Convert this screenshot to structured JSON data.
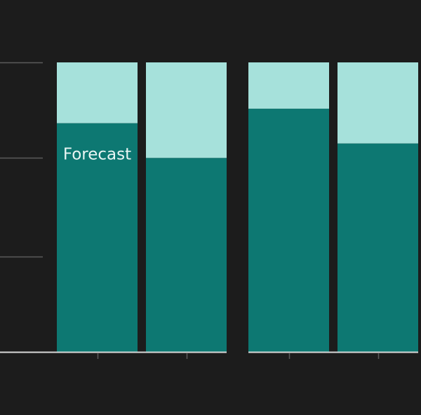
{
  "colors": {
    "background": "#1c1c1c",
    "series_primary": "#0d7872",
    "series_secondary": "#a6e1db",
    "grid": "#5a5a5a",
    "axis": "#d9d9d9",
    "annotation_text": "#e8f5f3"
  },
  "chart_data": {
    "type": "bar",
    "stacked": true,
    "normalized_to": 1,
    "orientation": "vertical",
    "categories": [
      "",
      "",
      "",
      ""
    ],
    "groups": [
      [
        0,
        1
      ],
      [
        2,
        3
      ]
    ],
    "series": [
      {
        "values": [
          0.79,
          0.67,
          0.84,
          0.72
        ]
      },
      {
        "values": [
          0.21,
          0.33,
          0.16,
          0.28
        ]
      }
    ],
    "ylim": [
      0,
      1
    ],
    "y_gridlines": [
      0.33,
      0.67,
      1.0
    ],
    "grid": true,
    "annotations": [
      {
        "text": "Forecast",
        "bar_index": 0,
        "series_index": 0
      }
    ]
  }
}
